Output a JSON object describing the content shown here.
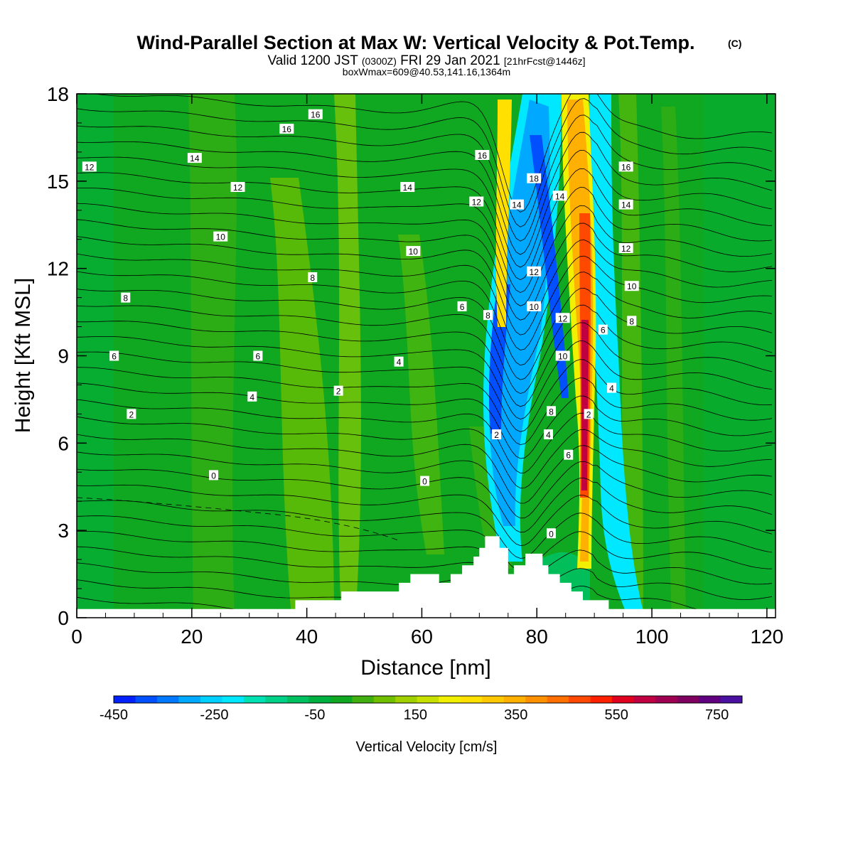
{
  "chart_data": {
    "type": "heatmap",
    "title": "Wind-Parallel Section at Max W: Vertical Velocity & Pot.Temp.",
    "title_mark": "(C)",
    "subtitle": {
      "prefix": "Valid 1200 JST",
      "utc": "(0300Z)",
      "date": "FRI 29 Jan 2021",
      "forecast": "[21hrFcst@1446z]"
    },
    "subtitle2": "boxWmax=609@40.53,141.16,1364m",
    "xlabel": "Distance [nm]",
    "ylabel": "Height [Kft MSL]",
    "xlim": [
      0,
      121.5
    ],
    "ylim": [
      0,
      18
    ],
    "x_ticks": [
      0,
      20,
      40,
      60,
      80,
      100,
      120
    ],
    "y_ticks": [
      0,
      3,
      6,
      9,
      12,
      15,
      18
    ],
    "colorbar": {
      "label": "Vertical Velocity [cm/s]",
      "min": -450,
      "max": 800,
      "step": 50,
      "tick_labels": [
        "-450",
        "-250",
        "-50",
        "150",
        "350",
        "550",
        "750"
      ],
      "colors": [
        "#0020ff",
        "#0050ff",
        "#0078ff",
        "#00a8ff",
        "#00d0ff",
        "#00e8ff",
        "#00e0b0",
        "#00d088",
        "#00c060",
        "#00b040",
        "#10a820",
        "#40b010",
        "#70c000",
        "#a0d000",
        "#c8e000",
        "#f0f000",
        "#ffe000",
        "#ffc800",
        "#ffb000",
        "#ff9000",
        "#ff7000",
        "#ff4800",
        "#ff2000",
        "#e00020",
        "#c00040",
        "#a00050",
        "#800060",
        "#600080",
        "#4a10a0"
      ]
    },
    "contour_labels": [
      {
        "x": 2.2,
        "y": 15.5,
        "label": "12"
      },
      {
        "x": 20.5,
        "y": 15.8,
        "label": "14"
      },
      {
        "x": 28,
        "y": 14.8,
        "label": "12"
      },
      {
        "x": 25,
        "y": 13.1,
        "label": "10"
      },
      {
        "x": 36.5,
        "y": 16.8,
        "label": "16"
      },
      {
        "x": 41.5,
        "y": 17.3,
        "label": "16"
      },
      {
        "x": 8.5,
        "y": 11.0,
        "label": "8"
      },
      {
        "x": 41,
        "y": 11.7,
        "label": "8"
      },
      {
        "x": 6.5,
        "y": 9.0,
        "label": "6"
      },
      {
        "x": 31.5,
        "y": 9.0,
        "label": "6"
      },
      {
        "x": 30.5,
        "y": 7.6,
        "label": "4"
      },
      {
        "x": 9.5,
        "y": 7.0,
        "label": "2"
      },
      {
        "x": 45.5,
        "y": 7.8,
        "label": "2"
      },
      {
        "x": 23.8,
        "y": 4.9,
        "label": "0"
      },
      {
        "x": 60.5,
        "y": 4.7,
        "label": "0"
      },
      {
        "x": 57.5,
        "y": 14.8,
        "label": "14"
      },
      {
        "x": 58.5,
        "y": 12.6,
        "label": "10"
      },
      {
        "x": 56,
        "y": 8.8,
        "label": "4"
      },
      {
        "x": 70.5,
        "y": 15.9,
        "label": "16"
      },
      {
        "x": 69.5,
        "y": 14.3,
        "label": "12"
      },
      {
        "x": 67,
        "y": 10.7,
        "label": "6"
      },
      {
        "x": 71.5,
        "y": 10.4,
        "label": "8"
      },
      {
        "x": 73,
        "y": 6.3,
        "label": "2"
      },
      {
        "x": 76.5,
        "y": 14.2,
        "label": "14"
      },
      {
        "x": 79.5,
        "y": 15.1,
        "label": "18"
      },
      {
        "x": 84,
        "y": 14.5,
        "label": "14"
      },
      {
        "x": 79.5,
        "y": 11.9,
        "label": "12"
      },
      {
        "x": 79.5,
        "y": 10.7,
        "label": "10"
      },
      {
        "x": 84.5,
        "y": 10.3,
        "label": "12"
      },
      {
        "x": 84.5,
        "y": 9.0,
        "label": "10"
      },
      {
        "x": 82.5,
        "y": 7.1,
        "label": "8"
      },
      {
        "x": 82,
        "y": 6.3,
        "label": "4"
      },
      {
        "x": 85.5,
        "y": 5.6,
        "label": "6"
      },
      {
        "x": 89,
        "y": 7.0,
        "label": "2"
      },
      {
        "x": 82.5,
        "y": 2.9,
        "label": "0"
      },
      {
        "x": 95.5,
        "y": 15.5,
        "label": "16"
      },
      {
        "x": 95.5,
        "y": 14.2,
        "label": "14"
      },
      {
        "x": 95.5,
        "y": 12.7,
        "label": "12"
      },
      {
        "x": 96.5,
        "y": 11.4,
        "label": "10"
      },
      {
        "x": 91.5,
        "y": 9.9,
        "label": "6"
      },
      {
        "x": 96.5,
        "y": 10.2,
        "label": "8"
      },
      {
        "x": 93,
        "y": 7.9,
        "label": "4"
      }
    ]
  }
}
